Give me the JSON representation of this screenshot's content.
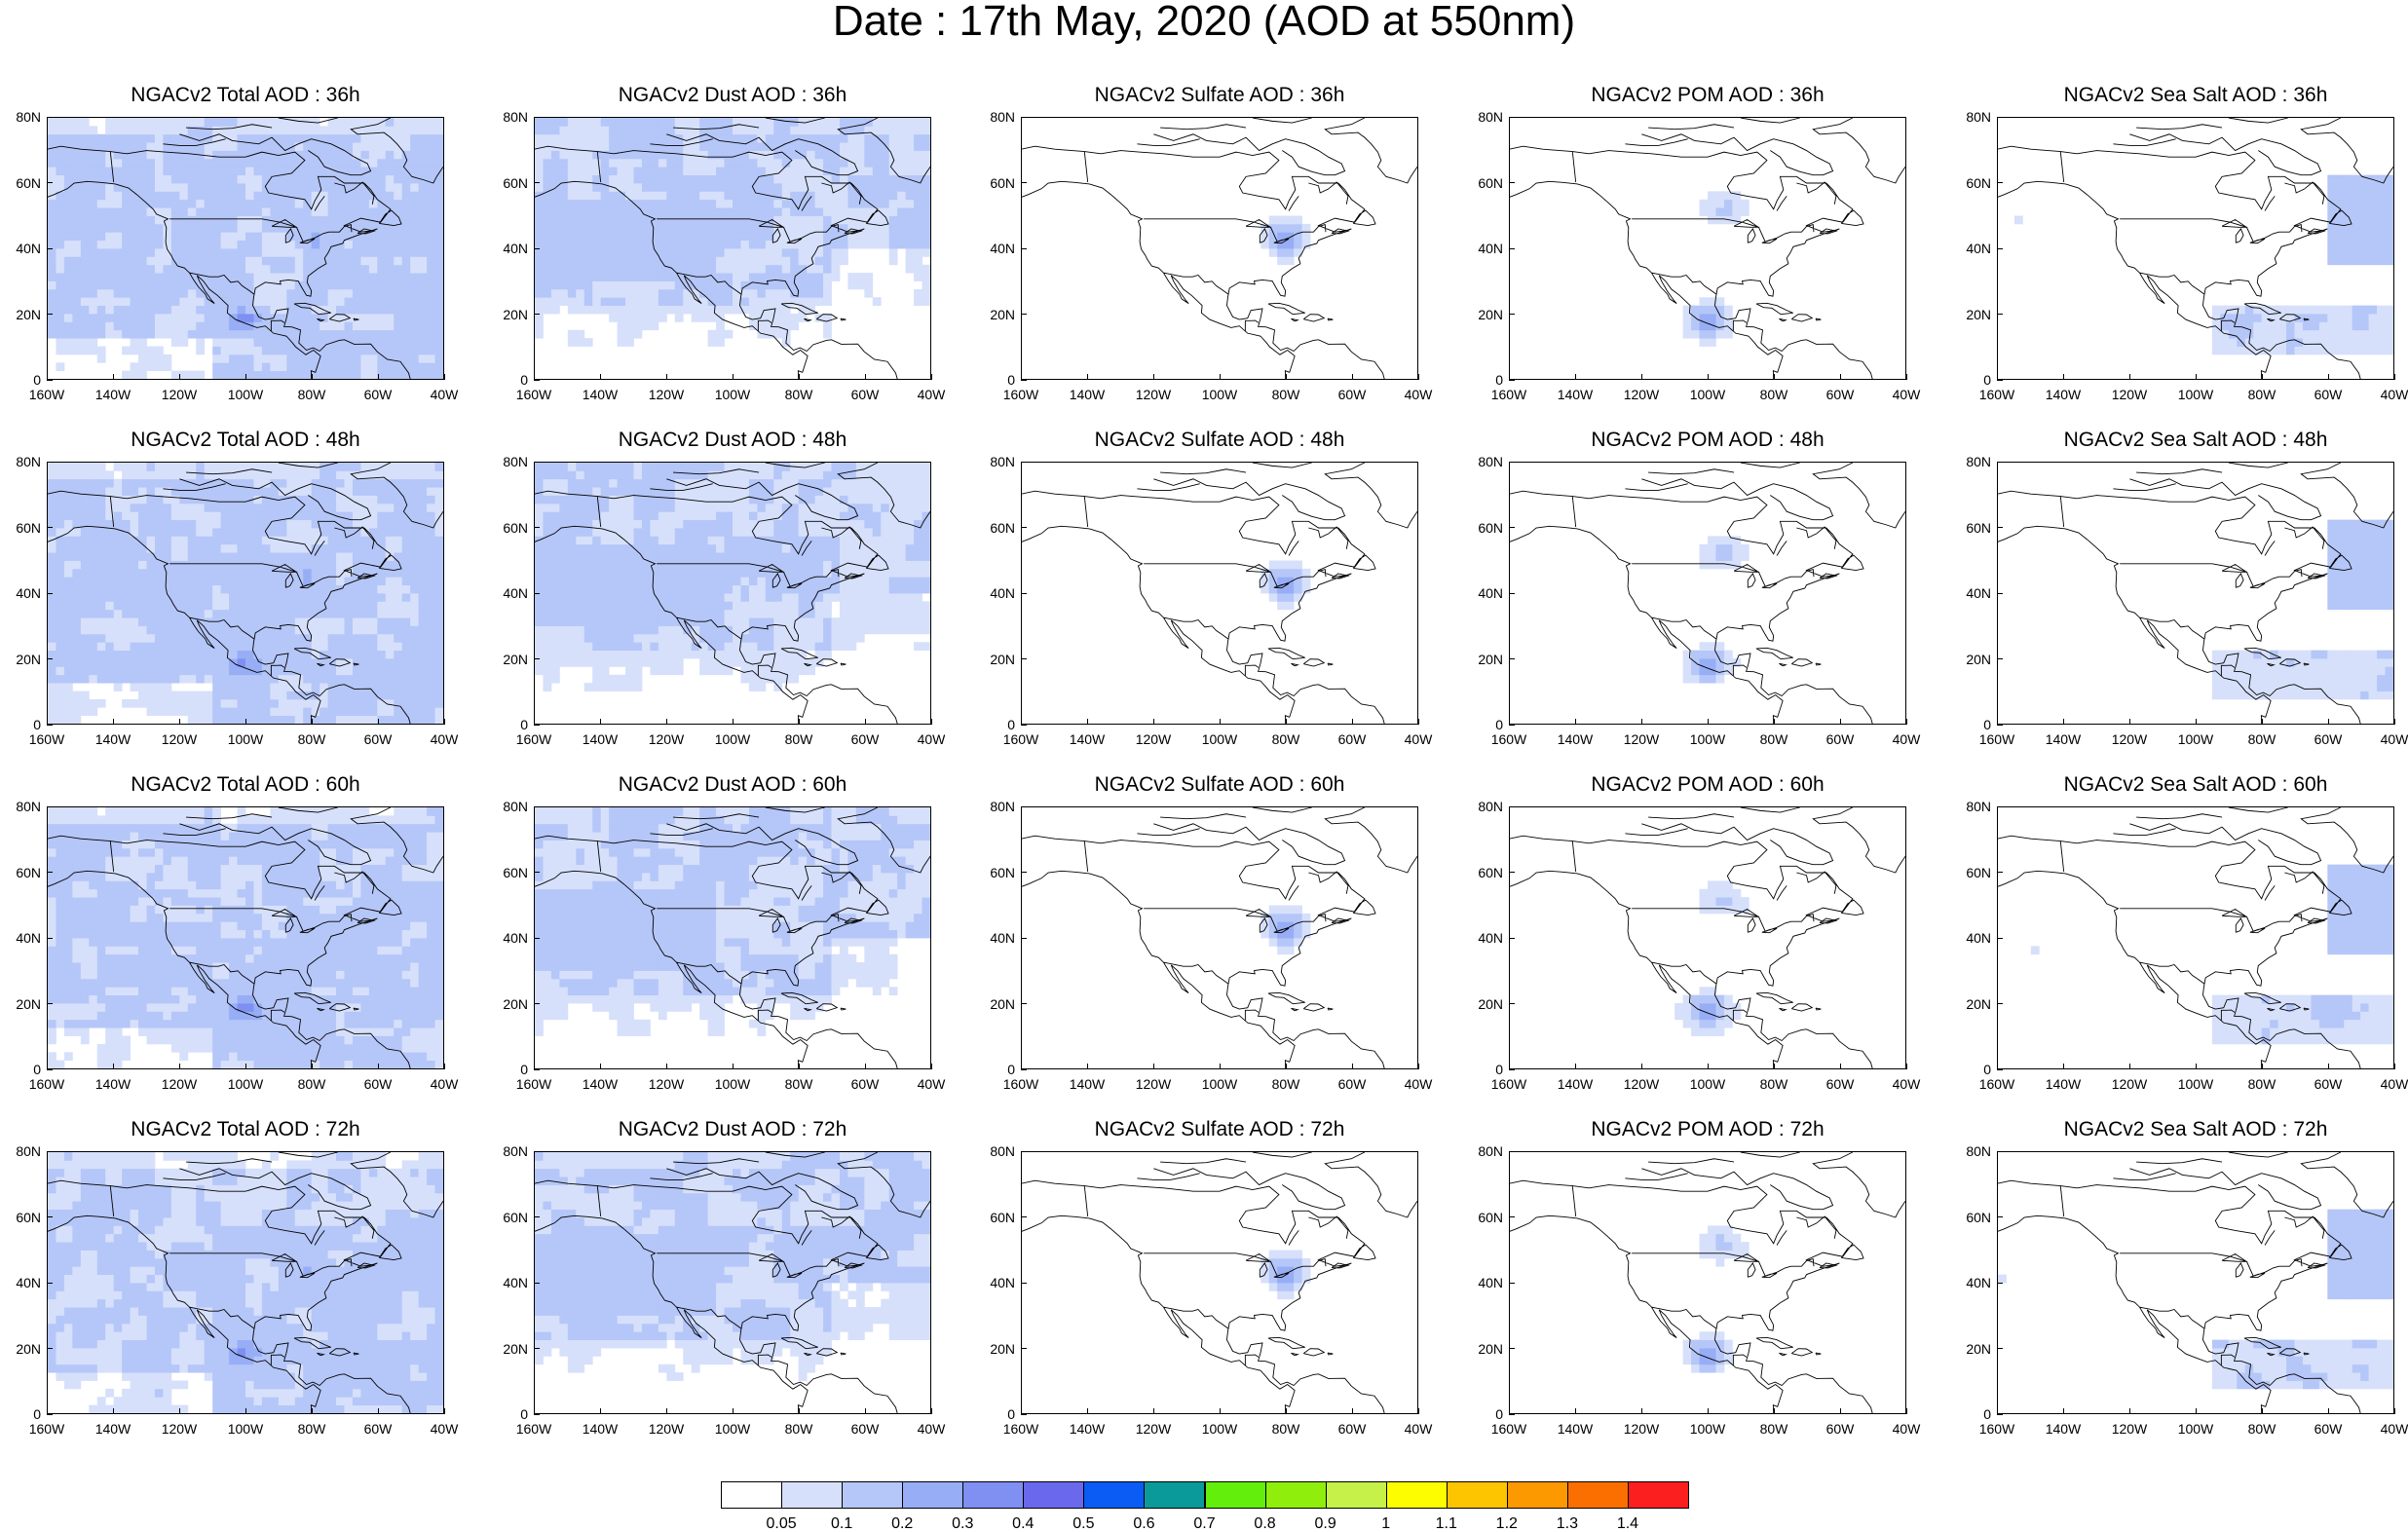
{
  "title": "Date : 17th May, 2020 (AOD at 550nm)",
  "lat_ticks": [
    "80N",
    "60N",
    "40N",
    "20N",
    "0"
  ],
  "lon_ticks": [
    "160W",
    "140W",
    "120W",
    "100W",
    "80W",
    "60W",
    "40W"
  ],
  "panels": [
    {
      "title": "NGACv2 Total AOD : 36h",
      "species": "total",
      "hour": "36h"
    },
    {
      "title": "NGACv2 Dust AOD : 36h",
      "species": "dust",
      "hour": "36h"
    },
    {
      "title": "NGACv2 Sulfate AOD : 36h",
      "species": "sulfate",
      "hour": "36h"
    },
    {
      "title": "NGACv2 POM AOD : 36h",
      "species": "pom",
      "hour": "36h"
    },
    {
      "title": "NGACv2 Sea Salt AOD : 36h",
      "species": "seasalt",
      "hour": "36h"
    },
    {
      "title": "NGACv2 Total AOD : 48h",
      "species": "total",
      "hour": "48h"
    },
    {
      "title": "NGACv2 Dust AOD : 48h",
      "species": "dust",
      "hour": "48h"
    },
    {
      "title": "NGACv2 Sulfate AOD : 48h",
      "species": "sulfate",
      "hour": "48h"
    },
    {
      "title": "NGACv2 POM AOD : 48h",
      "species": "pom",
      "hour": "48h"
    },
    {
      "title": "NGACv2 Sea Salt AOD : 48h",
      "species": "seasalt",
      "hour": "48h"
    },
    {
      "title": "NGACv2 Total AOD : 60h",
      "species": "total",
      "hour": "60h"
    },
    {
      "title": "NGACv2 Dust AOD : 60h",
      "species": "dust",
      "hour": "60h"
    },
    {
      "title": "NGACv2 Sulfate AOD : 60h",
      "species": "sulfate",
      "hour": "60h"
    },
    {
      "title": "NGACv2 POM AOD : 60h",
      "species": "pom",
      "hour": "60h"
    },
    {
      "title": "NGACv2 Sea Salt AOD : 60h",
      "species": "seasalt",
      "hour": "60h"
    },
    {
      "title": "NGACv2 Total AOD : 72h",
      "species": "total",
      "hour": "72h"
    },
    {
      "title": "NGACv2 Dust AOD : 72h",
      "species": "dust",
      "hour": "72h"
    },
    {
      "title": "NGACv2 Sulfate AOD : 72h",
      "species": "sulfate",
      "hour": "72h"
    },
    {
      "title": "NGACv2 POM AOD : 72h",
      "species": "pom",
      "hour": "72h"
    },
    {
      "title": "NGACv2 Sea Salt  AOD : 72h",
      "species": "seasalt",
      "hour": "72h"
    }
  ],
  "colorbar": {
    "colors": [
      "#ffffff",
      "#d6e0fb",
      "#b5c6f8",
      "#97aef6",
      "#7f8ff2",
      "#6a68ec",
      "#0a5cf5",
      "#0a9a9a",
      "#63ee0b",
      "#8fee0b",
      "#c5f149",
      "#fdfd00",
      "#fdc400",
      "#fc9800",
      "#fb6f00",
      "#fb1f1f"
    ],
    "labels": [
      "0.05",
      "0.1",
      "0.2",
      "0.3",
      "0.4",
      "0.5",
      "0.6",
      "0.7",
      "0.8",
      "0.9",
      "1",
      "1.1",
      "1.2",
      "1.3",
      "1.4"
    ]
  }
}
